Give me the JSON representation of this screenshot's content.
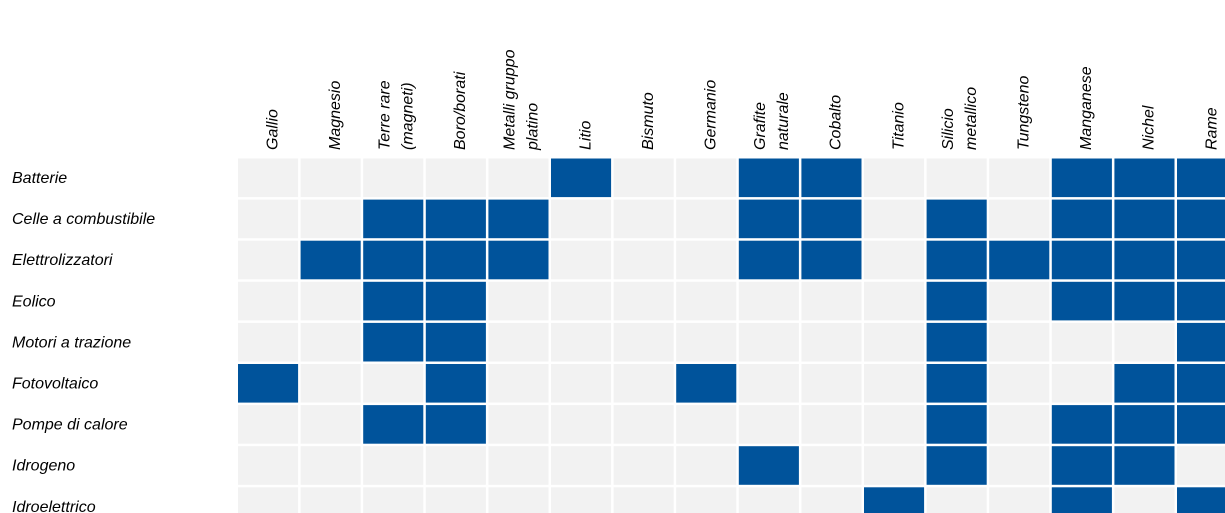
{
  "chart_data": {
    "type": "matrix",
    "columns": [
      [
        "Gallio"
      ],
      [
        "Magnesio"
      ],
      [
        "Terre rare",
        "(magneti)"
      ],
      [
        "Boro/borati"
      ],
      [
        "Metalli gruppo",
        "platino"
      ],
      [
        "Litio"
      ],
      [
        "Bismuto"
      ],
      [
        "Germanio"
      ],
      [
        "Grafite",
        "naturale"
      ],
      [
        "Cobalto"
      ],
      [
        "Titanio"
      ],
      [
        "Silicio",
        "metallico"
      ],
      [
        "Tungsteno"
      ],
      [
        "Manganese"
      ],
      [
        "Nichel"
      ],
      [
        "Rame"
      ]
    ],
    "rows": [
      "Batterie",
      "Celle a combustibile",
      "Elettrolizzatori",
      "Eolico",
      "Motori a trazione",
      "Fotovoltaico",
      "Pompe di calore",
      "Idrogeno",
      "Idroelettrico"
    ],
    "values": [
      [
        0,
        0,
        0,
        0,
        0,
        1,
        0,
        0,
        1,
        1,
        0,
        0,
        0,
        1,
        1,
        1
      ],
      [
        0,
        0,
        1,
        1,
        1,
        0,
        0,
        0,
        1,
        1,
        0,
        1,
        0,
        1,
        1,
        1
      ],
      [
        0,
        1,
        1,
        1,
        1,
        0,
        0,
        0,
        1,
        1,
        0,
        1,
        1,
        1,
        1,
        1
      ],
      [
        0,
        0,
        1,
        1,
        0,
        0,
        0,
        0,
        0,
        0,
        0,
        1,
        0,
        1,
        1,
        1
      ],
      [
        0,
        0,
        1,
        1,
        0,
        0,
        0,
        0,
        0,
        0,
        0,
        1,
        0,
        0,
        0,
        1
      ],
      [
        1,
        0,
        0,
        1,
        0,
        0,
        0,
        1,
        0,
        0,
        0,
        1,
        0,
        0,
        1,
        1
      ],
      [
        0,
        0,
        1,
        1,
        0,
        0,
        0,
        0,
        0,
        0,
        0,
        1,
        0,
        1,
        1,
        1
      ],
      [
        0,
        0,
        0,
        0,
        0,
        0,
        0,
        0,
        1,
        0,
        0,
        1,
        0,
        1,
        1,
        0
      ],
      [
        0,
        0,
        0,
        0,
        0,
        0,
        0,
        0,
        0,
        0,
        1,
        0,
        0,
        1,
        0,
        1
      ]
    ],
    "colors": {
      "on": "#00539b",
      "off": "#f2f2f2"
    }
  }
}
